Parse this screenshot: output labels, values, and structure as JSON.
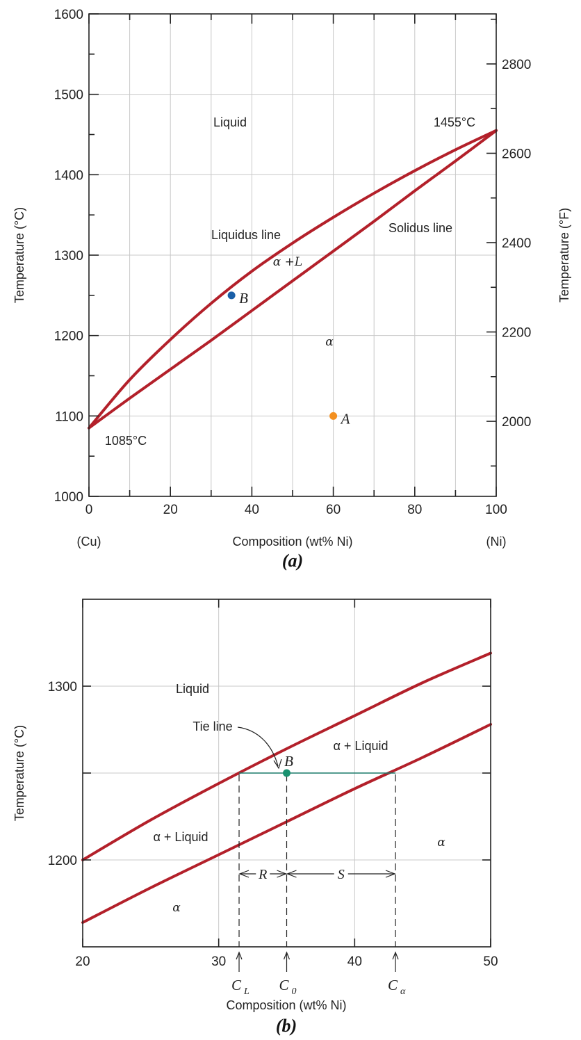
{
  "chart_data": [
    {
      "panel_label": "(a)",
      "type": "line",
      "xlabel": "Composition (wt% Ni)",
      "xlabel_left": "(Cu)",
      "xlabel_right": "(Ni)",
      "ylabel": "Temperature (°C)",
      "ylabel_right": "Temperature (°F)",
      "xlim": [
        0,
        100
      ],
      "ylim": [
        1000,
        1600
      ],
      "x_ticks": [
        "0",
        "20",
        "40",
        "60",
        "80",
        "100"
      ],
      "y_ticks": [
        "1000",
        "1100",
        "1200",
        "1300",
        "1400",
        "1500",
        "1600"
      ],
      "y2_ticks": [
        "2000",
        "2200",
        "2400",
        "2600",
        "2800"
      ],
      "grid": true,
      "series": [
        {
          "name": "Liquidus line",
          "x": [
            0,
            10,
            20,
            30,
            40,
            50,
            60,
            70,
            80,
            90,
            100
          ],
          "y": [
            1085,
            1145,
            1195,
            1240,
            1280,
            1315,
            1347,
            1377,
            1405,
            1431,
            1455
          ]
        },
        {
          "name": "Solidus line",
          "x": [
            0,
            10,
            20,
            30,
            40,
            50,
            60,
            70,
            80,
            90,
            100
          ],
          "y": [
            1085,
            1122,
            1158,
            1194,
            1231,
            1268,
            1305,
            1342,
            1380,
            1417,
            1455
          ]
        }
      ],
      "points": [
        {
          "label": "B",
          "x": 35,
          "y": 1250,
          "color": "#1a5fa8"
        },
        {
          "label": "A",
          "x": 60,
          "y": 1100,
          "color": "#f39020"
        }
      ],
      "annotations": [
        "Liquid",
        "1455°C",
        "Liquidus line",
        "Solidus line",
        "α +L",
        "α",
        "1085°C"
      ]
    },
    {
      "panel_label": "(b)",
      "type": "line",
      "xlabel": "Composition (wt% Ni)",
      "ylabel": "Temperature (°C)",
      "xlim": [
        20,
        50
      ],
      "ylim": [
        1150,
        1350
      ],
      "x_ticks": [
        "20",
        "30",
        "40",
        "50"
      ],
      "y_ticks": [
        "1200",
        "1300"
      ],
      "grid": true,
      "series": [
        {
          "name": "Liquidus",
          "x": [
            20,
            25,
            30,
            35,
            40,
            45,
            50
          ],
          "y": [
            1200,
            1223,
            1244,
            1264,
            1283,
            1302,
            1319
          ]
        },
        {
          "name": "Solidus",
          "x": [
            20,
            25,
            30,
            35,
            40,
            45,
            50
          ],
          "y": [
            1164,
            1184,
            1203,
            1222,
            1241,
            1259,
            1278
          ]
        }
      ],
      "tie_line": {
        "y": 1250,
        "x_start": 31.5,
        "x_end": 43,
        "color": "#1a7a6a"
      },
      "points": [
        {
          "label": "B",
          "x": 35,
          "y": 1250,
          "color": "#1a9270"
        }
      ],
      "markers": [
        {
          "label": "C",
          "sub": "L",
          "x": 31.5
        },
        {
          "label": "C",
          "sub": "0",
          "x": 35
        },
        {
          "label": "C",
          "sub": "α",
          "x": 43
        }
      ],
      "segments": [
        {
          "label": "R",
          "from": 31.5,
          "to": 35
        },
        {
          "label": "S",
          "from": 35,
          "to": 43
        }
      ],
      "annotations": [
        "Liquid",
        "Tie line",
        "α + Liquid",
        "α + Liquid",
        "α",
        "α"
      ]
    }
  ]
}
